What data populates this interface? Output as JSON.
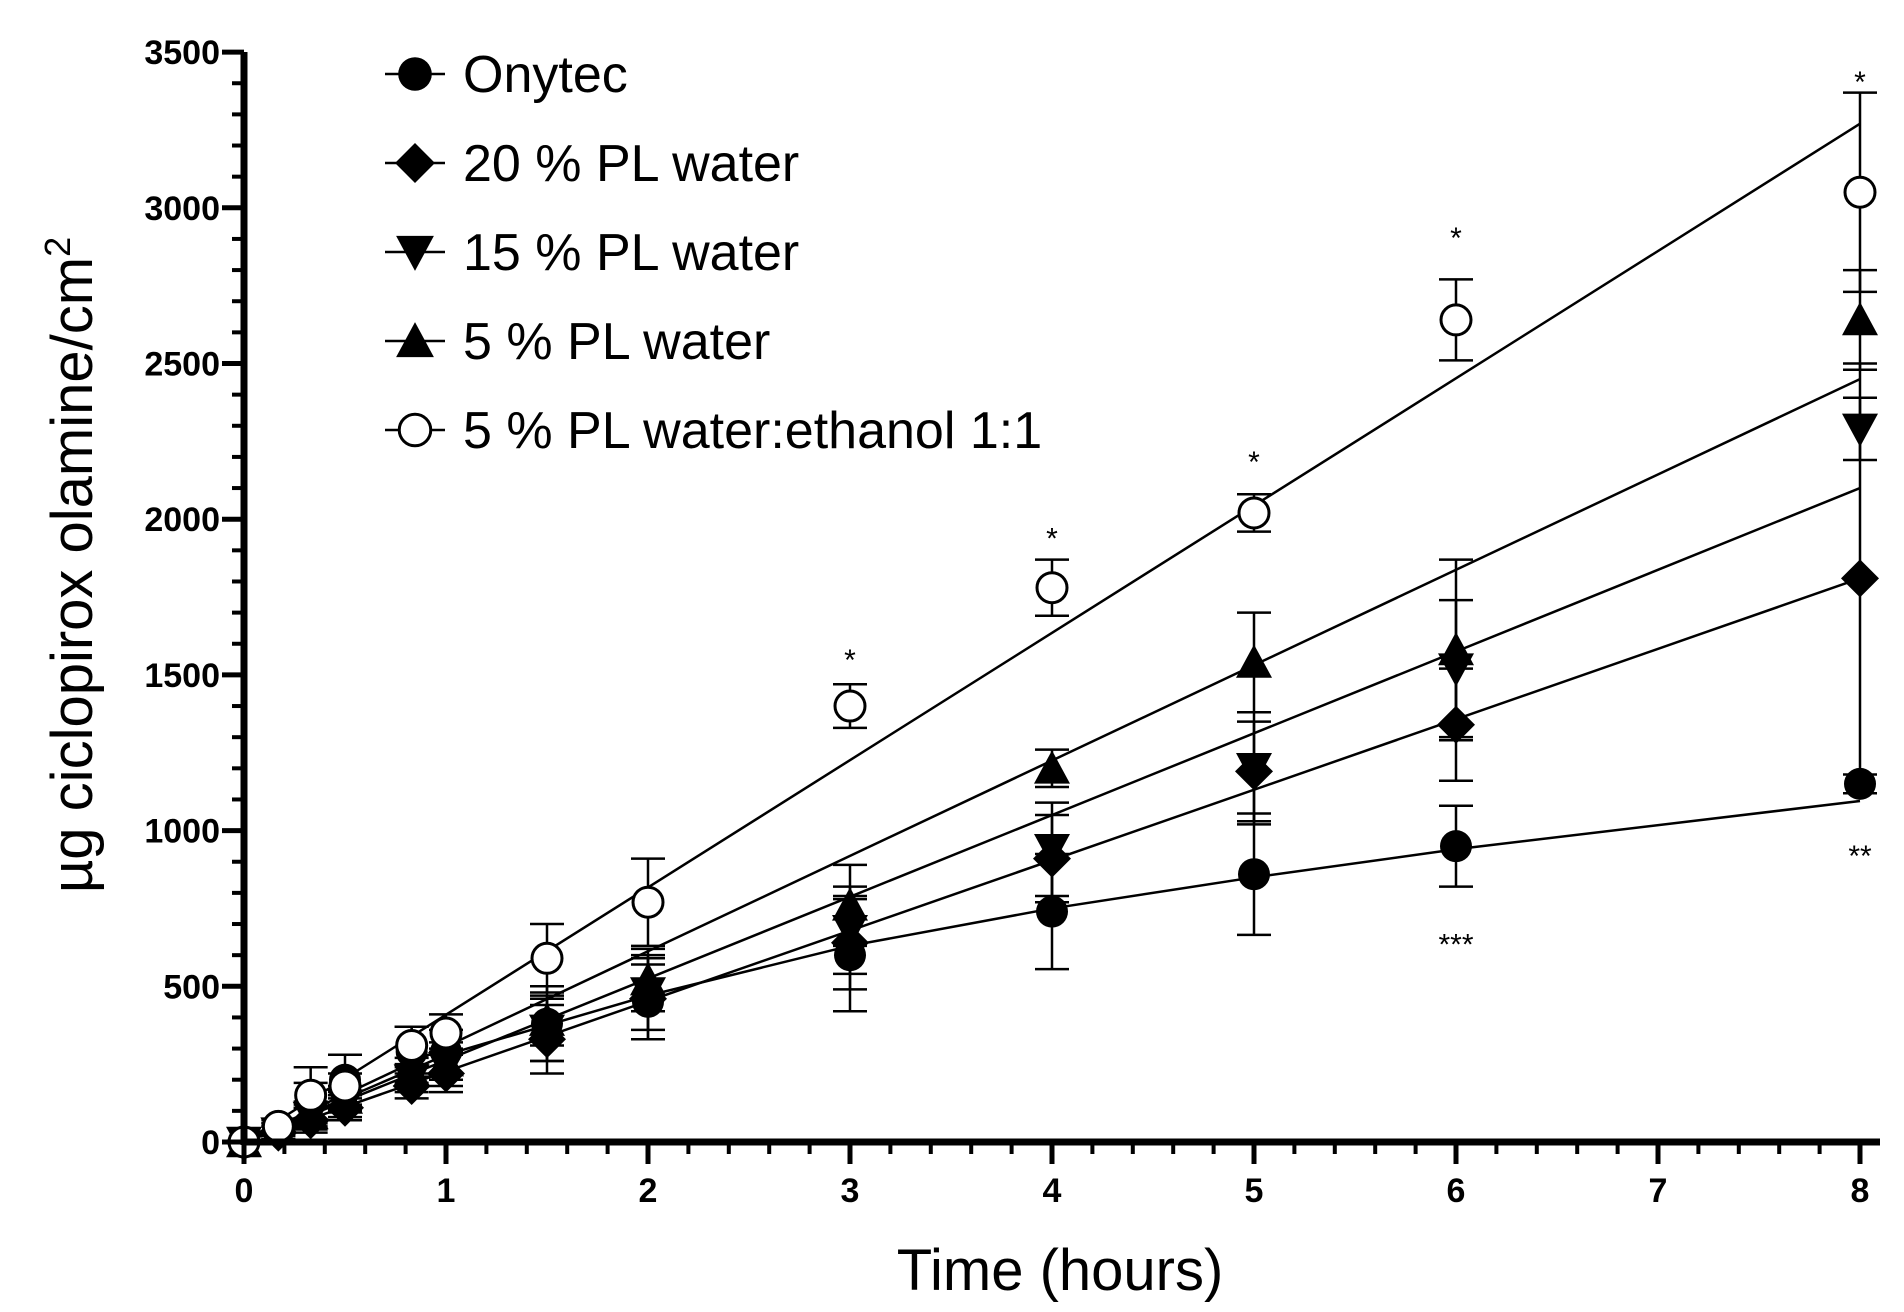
{
  "chart_data": {
    "type": "scatter",
    "title": "",
    "xlabel": "Time (hours)",
    "ylabel": "µg ciclopirox olamine/cm",
    "ylabel_superscript": "2",
    "xlim": [
      0,
      8.1
    ],
    "ylim": [
      0,
      3500
    ],
    "x_ticks": [
      0,
      1,
      2,
      3,
      4,
      5,
      6,
      7,
      8
    ],
    "x_minor_step": 0.2,
    "y_ticks": [
      0,
      500,
      1000,
      1500,
      2000,
      2500,
      3000,
      3500
    ],
    "y_minor_step": 100,
    "legend_position": "top-left",
    "series": [
      {
        "name": "Onytec",
        "marker": "circle-filled",
        "x": [
          0,
          0.17,
          0.33,
          0.5,
          0.83,
          1,
          1.5,
          2,
          3,
          4,
          5,
          6,
          8
        ],
        "values": [
          0,
          40,
          150,
          200,
          290,
          290,
          380,
          450,
          600,
          740,
          860,
          950,
          1150
        ],
        "errors": [
          0,
          20,
          90,
          80,
          80,
          70,
          120,
          120,
          180,
          185,
          195,
          130,
          30
        ],
        "fit_line": {
          "x": [
            0,
            1,
            2,
            3,
            4,
            5,
            6,
            8
          ],
          "y": [
            0,
            280,
            470,
            630,
            750,
            850,
            940,
            1095
          ]
        }
      },
      {
        "name": "20 % PL water",
        "marker": "diamond-filled",
        "x": [
          0,
          0.17,
          0.33,
          0.5,
          0.83,
          1,
          1.5,
          2,
          3,
          4,
          5,
          6,
          8
        ],
        "values": [
          0,
          30,
          70,
          110,
          180,
          220,
          330,
          460,
          640,
          910,
          1190,
          1340,
          1810
        ],
        "errors": [
          0,
          20,
          40,
          40,
          40,
          60,
          110,
          130,
          150,
          140,
          160,
          180,
          690
        ],
        "fit_line": {
          "x": [
            0,
            8
          ],
          "y": [
            0,
            1810
          ]
        }
      },
      {
        "name": "15 % PL water",
        "marker": "triangle-down-filled",
        "x": [
          0,
          0.17,
          0.33,
          0.5,
          0.83,
          1,
          1.5,
          2,
          3,
          4,
          5,
          6,
          8
        ],
        "values": [
          0,
          30,
          80,
          120,
          200,
          240,
          360,
          480,
          680,
          940,
          1200,
          1520,
          2290
        ],
        "errors": [
          0,
          20,
          40,
          40,
          40,
          60,
          100,
          120,
          140,
          150,
          180,
          220,
          100
        ],
        "fit_line": {
          "x": [
            0,
            8
          ],
          "y": [
            0,
            2100
          ]
        }
      },
      {
        "name": "5 % PL water",
        "marker": "triangle-up-filled",
        "x": [
          0,
          0.17,
          0.33,
          0.5,
          0.83,
          1,
          1.5,
          2,
          3,
          4,
          5,
          6,
          8
        ],
        "values": [
          0,
          40,
          90,
          140,
          230,
          260,
          390,
          520,
          760,
          1200,
          1540,
          1580,
          2640
        ],
        "errors": [
          0,
          20,
          40,
          40,
          40,
          60,
          80,
          100,
          130,
          60,
          160,
          290,
          160
        ],
        "fit_line": {
          "x": [
            0,
            8
          ],
          "y": [
            0,
            2450
          ]
        }
      },
      {
        "name": "5 % PL water:ethanol 1:1",
        "marker": "circle-open",
        "x": [
          0,
          0.17,
          0.33,
          0.5,
          0.83,
          1,
          1.5,
          2,
          3,
          4,
          5,
          6,
          8
        ],
        "values": [
          0,
          50,
          150,
          180,
          310,
          350,
          590,
          770,
          1400,
          1780,
          2020,
          2640,
          3050
        ],
        "errors": [
          0,
          20,
          40,
          40,
          60,
          60,
          110,
          140,
          70,
          90,
          60,
          130,
          320
        ],
        "fit_line": {
          "x": [
            0,
            8
          ],
          "y": [
            0,
            3270
          ]
        }
      }
    ],
    "annotations": [
      {
        "text": "*",
        "x": 3,
        "y": 1555
      },
      {
        "text": "*",
        "x": 4,
        "y": 1945
      },
      {
        "text": "*",
        "x": 5,
        "y": 2190
      },
      {
        "text": "*",
        "x": 6,
        "y": 2910
      },
      {
        "text": "*",
        "x": 8,
        "y": 3410
      },
      {
        "text": "***",
        "x": 6,
        "y": 640
      },
      {
        "text": "**",
        "x": 8,
        "y": 925
      }
    ]
  }
}
